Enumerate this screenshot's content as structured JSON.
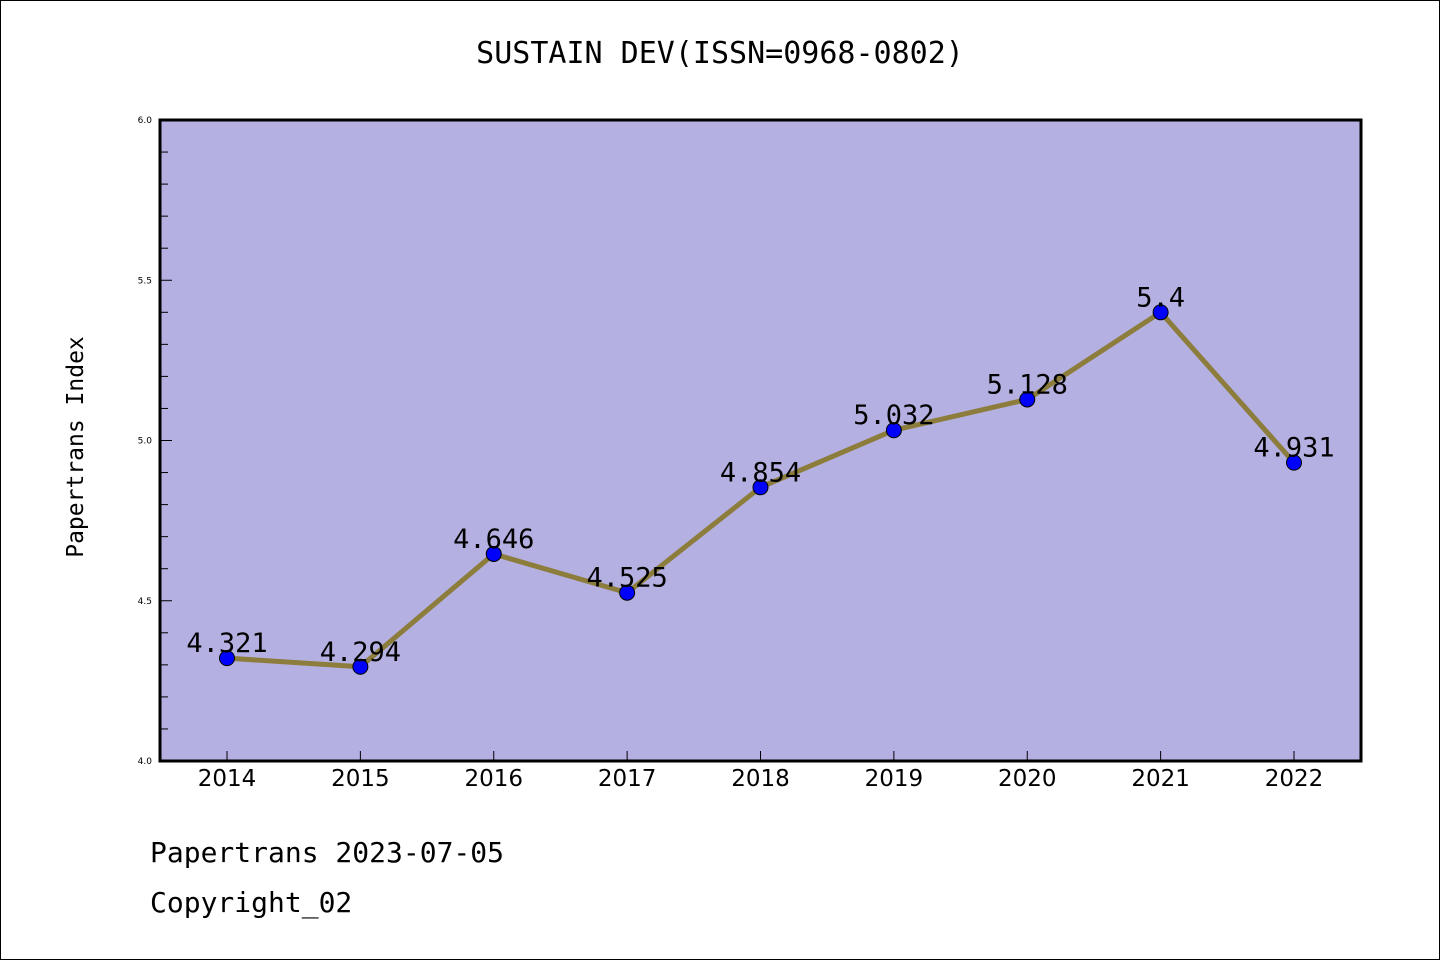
{
  "chart_data": {
    "type": "line",
    "title": "SUSTAIN DEV(ISSN=0968-0802)",
    "xlabel": "",
    "ylabel": "Papertrans Index",
    "categories": [
      "2014",
      "2015",
      "2016",
      "2017",
      "2018",
      "2019",
      "2020",
      "2021",
      "2022"
    ],
    "series": [
      {
        "values": [
          4.321,
          4.294,
          4.646,
          4.525,
          4.854,
          5.032,
          5.128,
          5.4,
          4.931
        ],
        "labels": [
          "4.321",
          "4.294",
          "4.646",
          "4.525",
          "4.854",
          "5.032",
          "5.128",
          "5.4",
          "4.931"
        ]
      }
    ],
    "ylim": [
      4.0,
      6.0
    ],
    "yticks": [
      "4.0",
      "4.5",
      "5.0",
      "5.5",
      "6.0"
    ],
    "grid": false,
    "colors": {
      "plot_background": "#b5b0e2",
      "line": "#8c7d3c",
      "marker": "#0000ff"
    }
  },
  "footer": {
    "line1": "Papertrans 2023-07-05",
    "line2": "Copyright_02"
  }
}
